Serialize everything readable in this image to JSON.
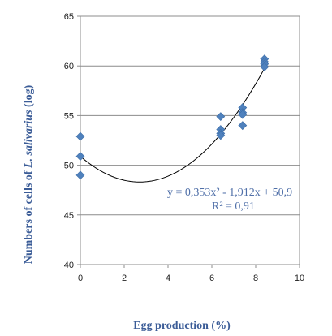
{
  "chart_data": {
    "type": "scatter",
    "xlabel": "Egg production (%)",
    "ylabel": {
      "prefix": "Numbers of cells of ",
      "species": "L. salivarius",
      "suffix": " (log)"
    },
    "xlim": [
      0,
      10
    ],
    "ylim": [
      40,
      65
    ],
    "x_ticks": [
      "0",
      "2",
      "4",
      "6",
      "8",
      "10"
    ],
    "y_ticks": [
      "40",
      "45",
      "50",
      "55",
      "60",
      "65"
    ],
    "grid": "horizontal",
    "series": [
      {
        "points": [
          {
            "x": 0,
            "y": 52.9
          },
          {
            "x": 0,
            "y": 50.9
          },
          {
            "x": 0,
            "y": 49.0
          },
          {
            "x": 6.4,
            "y": 54.9
          },
          {
            "x": 6.4,
            "y": 53.6
          },
          {
            "x": 6.4,
            "y": 53.2
          },
          {
            "x": 6.4,
            "y": 53.0
          },
          {
            "x": 7.4,
            "y": 55.8
          },
          {
            "x": 7.4,
            "y": 55.3
          },
          {
            "x": 7.4,
            "y": 55.1
          },
          {
            "x": 7.4,
            "y": 54.0
          },
          {
            "x": 8.4,
            "y": 60.7
          },
          {
            "x": 8.4,
            "y": 60.4
          },
          {
            "x": 8.4,
            "y": 60.2
          },
          {
            "x": 8.4,
            "y": 59.9
          }
        ],
        "color": "#4f81bd",
        "marker": "diamond"
      }
    ],
    "trendline": {
      "type": "polynomial",
      "coefficients": [
        0.353,
        -1.912,
        50.9
      ],
      "x_range": [
        0,
        8.4
      ],
      "color": "#000000",
      "equation": "y = 0,353x² - 1,912x + 50,9",
      "r_squared": "R² = 0,91"
    }
  }
}
